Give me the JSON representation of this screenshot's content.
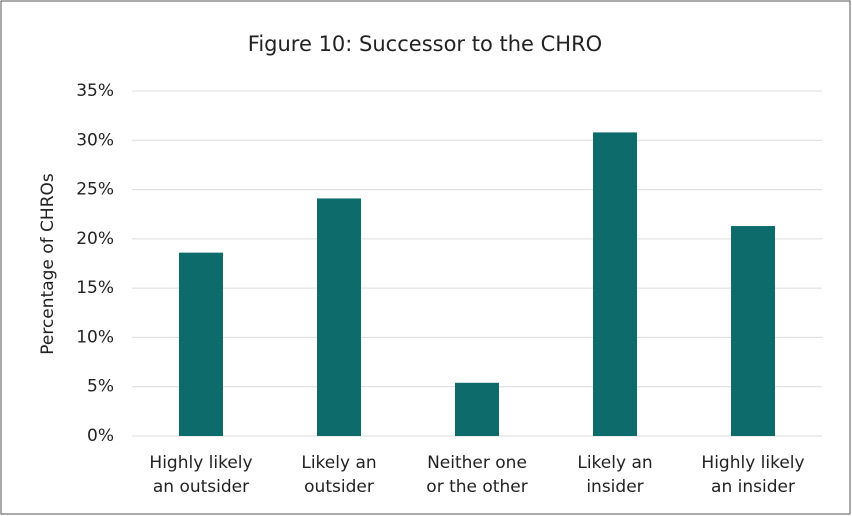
{
  "chart_data": {
    "type": "bar",
    "title": "Figure 10: Successor to the CHRO",
    "y_label": "Percentage of CHROs",
    "categories": [
      [
        "Highly likely",
        "an outsider"
      ],
      [
        "Likely an",
        "outsider"
      ],
      [
        "Neither one",
        "or the other"
      ],
      [
        "Likely an",
        "insider"
      ],
      [
        "Highly likely",
        "an insider"
      ]
    ],
    "values": [
      18.6,
      24.1,
      5.4,
      30.8,
      21.3
    ],
    "color": "#0e6b6b",
    "ylim": [
      0,
      35
    ],
    "yticks": [
      {
        "value": 0,
        "label": "0%"
      },
      {
        "value": 5,
        "label": "5%"
      },
      {
        "value": 10,
        "label": "10%"
      },
      {
        "value": 15,
        "label": "15%"
      },
      {
        "value": 20,
        "label": "20%"
      },
      {
        "value": 25,
        "label": "25%"
      },
      {
        "value": 30,
        "label": "30%"
      },
      {
        "value": 35,
        "label": "35%"
      }
    ],
    "grid": true
  }
}
